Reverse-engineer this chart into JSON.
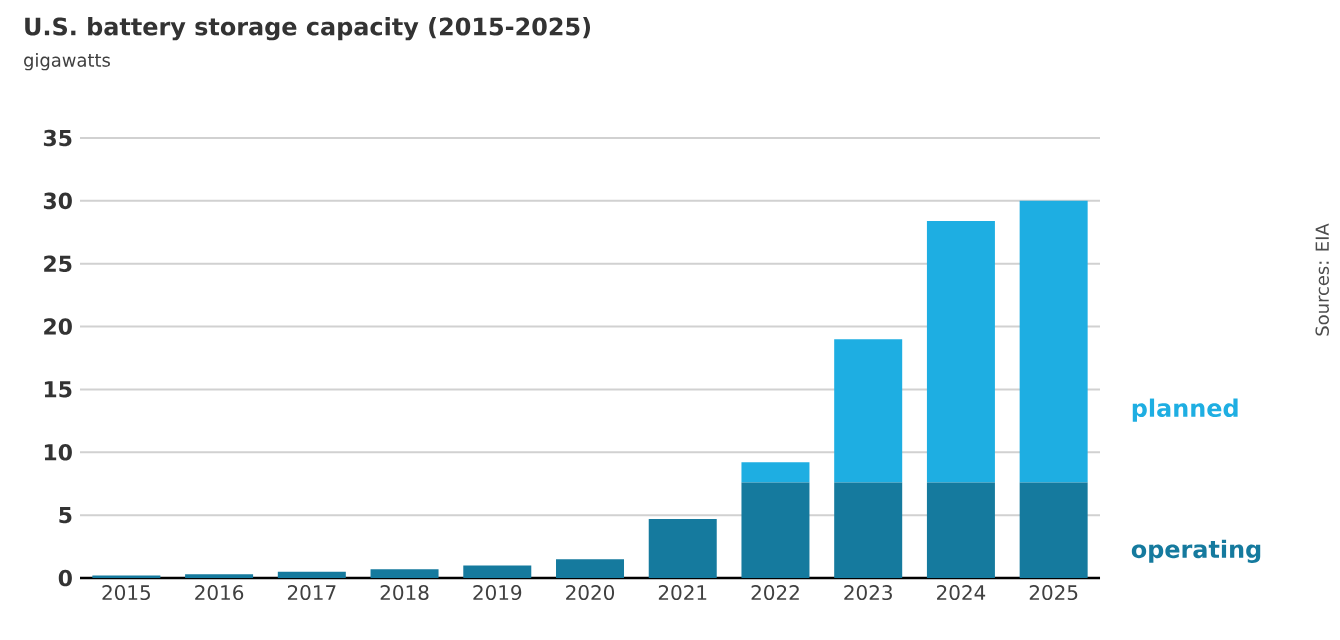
{
  "chart_data": {
    "type": "bar",
    "stacked": true,
    "title": "U.S. battery storage capacity (2015-2025)",
    "subtitle": "gigawatts",
    "categories": [
      "2015",
      "2016",
      "2017",
      "2018",
      "2019",
      "2020",
      "2021",
      "2022",
      "2023",
      "2024",
      "2025"
    ],
    "series": [
      {
        "name": "operating",
        "color": "#157a9e",
        "values": [
          0.2,
          0.3,
          0.5,
          0.7,
          1.0,
          1.5,
          4.7,
          7.6,
          7.6,
          7.6,
          7.6
        ]
      },
      {
        "name": "planned",
        "color": "#1eaee2",
        "values": [
          null,
          null,
          null,
          null,
          null,
          null,
          null,
          1.6,
          11.4,
          20.8,
          22.4
        ]
      }
    ],
    "ylim": [
      0,
      35
    ],
    "yticks": [
      0,
      5,
      10,
      15,
      20,
      25,
      30,
      35
    ],
    "grid": "y",
    "legend": "right",
    "annotations": [
      "Sources: EIA"
    ]
  }
}
